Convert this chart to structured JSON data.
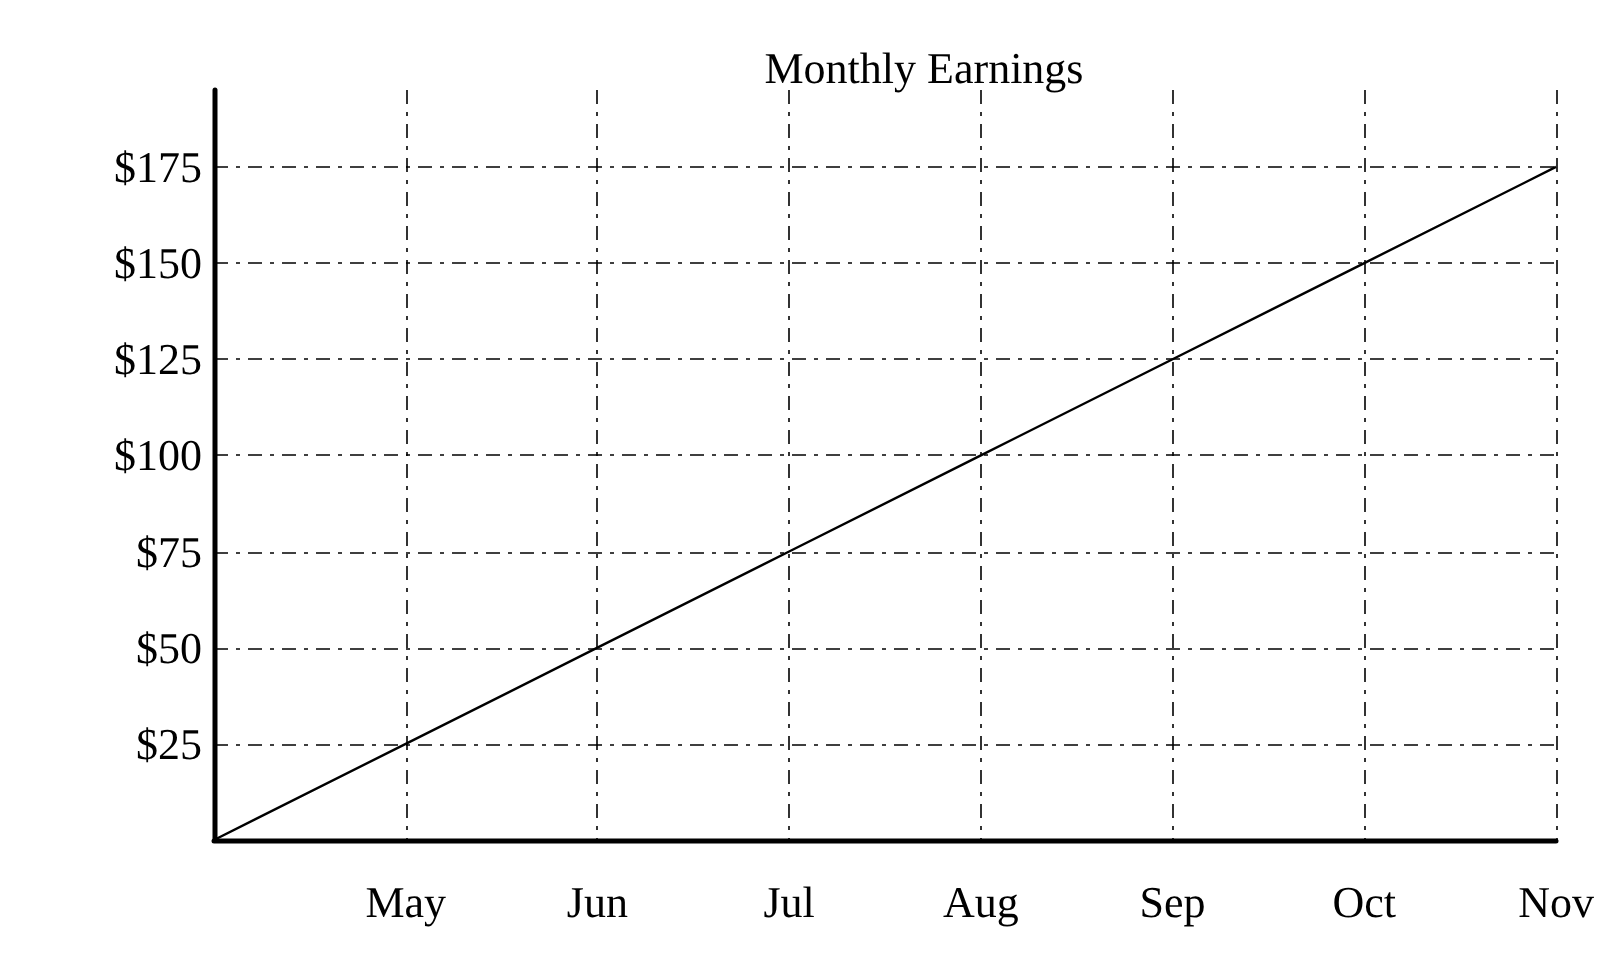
{
  "chart_data": {
    "type": "line",
    "title": "Monthly Earnings",
    "categories": [
      null,
      "May",
      "Jun",
      "Jul",
      "Aug",
      "Sep",
      "Oct",
      "Nov"
    ],
    "series": [
      {
        "color": "#000000",
        "values": [
          0,
          25,
          50,
          75,
          100,
          125,
          150,
          175
        ]
      }
    ],
    "ylim": [
      0,
      195
    ],
    "yticks": [
      {
        "value": 25,
        "label": "$25"
      },
      {
        "value": 50,
        "label": "$50"
      },
      {
        "value": 75,
        "label": "$75"
      },
      {
        "value": 100,
        "label": "$100"
      },
      {
        "value": 125,
        "label": "$125"
      },
      {
        "value": 150,
        "label": "$150"
      },
      {
        "value": 175,
        "label": "$175"
      }
    ],
    "grid": true,
    "marker": "none",
    "line_style": "solid"
  }
}
